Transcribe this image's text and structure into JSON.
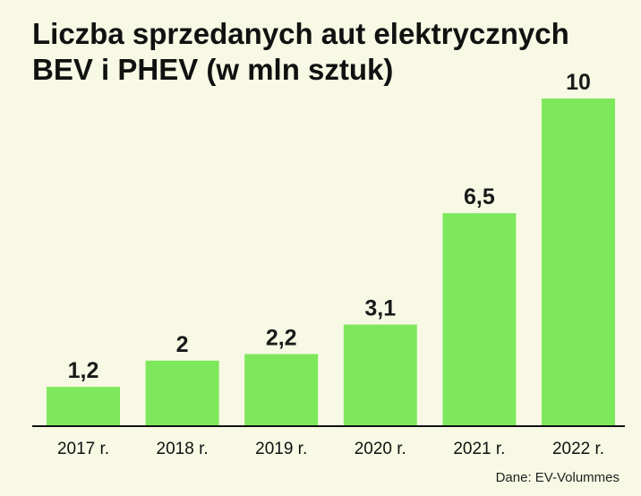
{
  "chart_data": {
    "type": "bar",
    "title": "Liczba sprzedanych aut elektrycznych BEV i PHEV (w mln sztuk)",
    "categories": [
      "2017 r.",
      "2018 r.",
      "2019 r.",
      "2020 r.",
      "2021 r.",
      "2022 r."
    ],
    "values": [
      1.2,
      2,
      2.2,
      3.1,
      6.5,
      10
    ],
    "value_labels": [
      "1,2",
      "2",
      "2,2",
      "3,1",
      "6,5",
      "10"
    ],
    "xlabel": "",
    "ylabel": "",
    "ylim": [
      0,
      10
    ],
    "grid": false,
    "bar_color": "#7ee85c"
  },
  "source": "Dane: EV-Volummes"
}
